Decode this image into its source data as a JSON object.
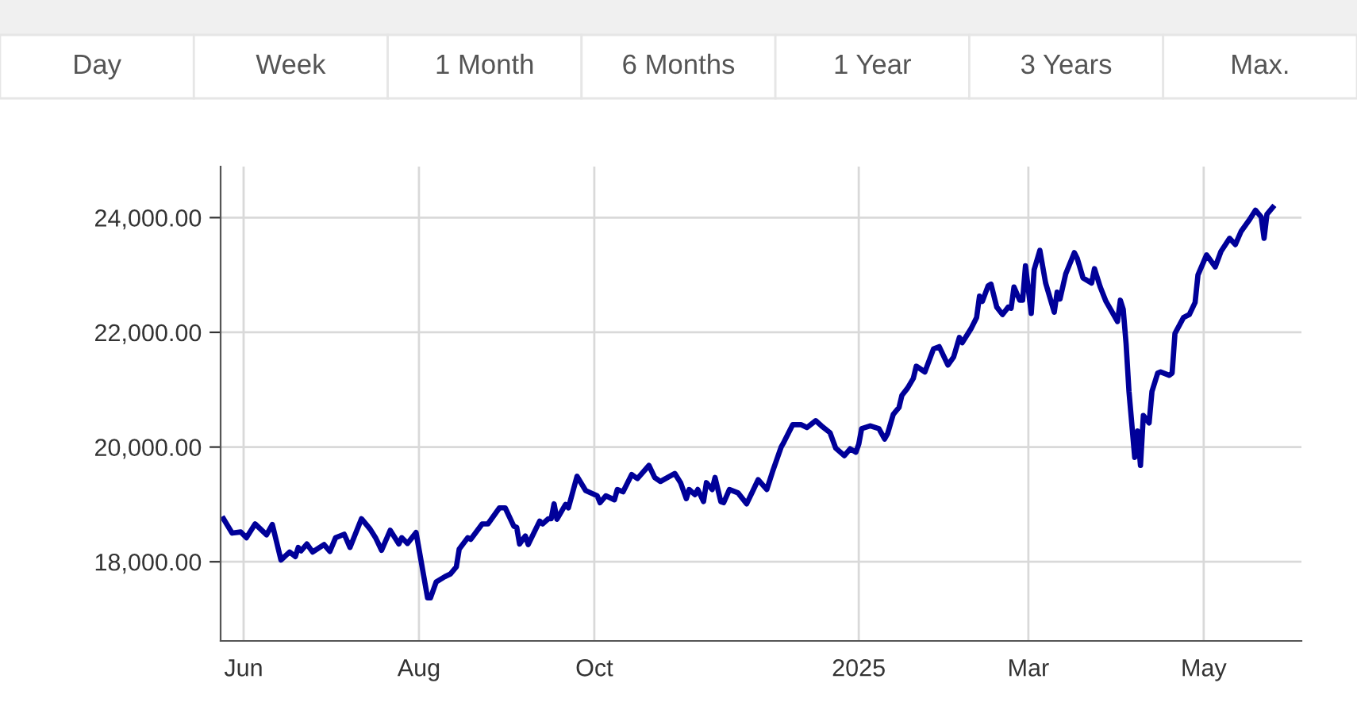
{
  "chart_data": {
    "type": "line",
    "annotations": [
      "Day",
      "Week",
      "1 Month",
      "6 Months",
      "1 Year",
      "3 Years",
      "Max."
    ],
    "xlim": [
      "2024-05-24",
      "2025-06-04"
    ],
    "xticks": [
      {
        "value": "2024-06-01",
        "label": "Jun"
      },
      {
        "value": "2024-08-01",
        "label": "Aug"
      },
      {
        "value": "2024-10-01",
        "label": "Oct"
      },
      {
        "value": "2025-01-01",
        "label": "2025"
      },
      {
        "value": "2025-03-01",
        "label": "Mar"
      },
      {
        "value": "2025-05-01",
        "label": "May"
      }
    ],
    "ylim": [
      16620,
      24890
    ],
    "yticks": [
      {
        "value": 18000,
        "label": "18,000.00"
      },
      {
        "value": 20000,
        "label": "20,000.00"
      },
      {
        "value": 22000,
        "label": "22,000.00"
      },
      {
        "value": 24000,
        "label": "24,000.00"
      }
    ],
    "grid": true,
    "marker": "none",
    "line_style": "solid",
    "series": [
      {
        "color": "#000099",
        "x": [
          "2024-05-25",
          "2024-05-28",
          "2024-05-31",
          "2024-06-02",
          "2024-06-05",
          "2024-06-09",
          "2024-06-11",
          "2024-06-14",
          "2024-06-17",
          "2024-06-19",
          "2024-06-20",
          "2024-06-21",
          "2024-06-23",
          "2024-06-25",
          "2024-06-29",
          "2024-07-01",
          "2024-07-03",
          "2024-07-06",
          "2024-07-08",
          "2024-07-12",
          "2024-07-15",
          "2024-07-17",
          "2024-07-19",
          "2024-07-22",
          "2024-07-25",
          "2024-07-26",
          "2024-07-28",
          "2024-07-31",
          "2024-08-04",
          "2024-08-05",
          "2024-08-07",
          "2024-08-10",
          "2024-08-12",
          "2024-08-14",
          "2024-08-15",
          "2024-08-18",
          "2024-08-19",
          "2024-08-23",
          "2024-08-25",
          "2024-08-29",
          "2024-08-31",
          "2024-09-03",
          "2024-09-04",
          "2024-09-05",
          "2024-09-07",
          "2024-09-08",
          "2024-09-12",
          "2024-09-13",
          "2024-09-15",
          "2024-09-16",
          "2024-09-17",
          "2024-09-18",
          "2024-09-21",
          "2024-09-22",
          "2024-09-25",
          "2024-09-28",
          "2024-10-02",
          "2024-10-03",
          "2024-10-05",
          "2024-10-08",
          "2024-10-09",
          "2024-10-11",
          "2024-10-14",
          "2024-10-16",
          "2024-10-20",
          "2024-10-22",
          "2024-10-24",
          "2024-10-29",
          "2024-10-31",
          "2024-11-02",
          "2024-11-03",
          "2024-11-05",
          "2024-11-06",
          "2024-11-08",
          "2024-11-09",
          "2024-11-11",
          "2024-11-12",
          "2024-11-14",
          "2024-11-15",
          "2024-11-17",
          "2024-11-20",
          "2024-11-23",
          "2024-11-25",
          "2024-11-27",
          "2024-11-30",
          "2024-12-02",
          "2024-12-05",
          "2024-12-06",
          "2024-12-09",
          "2024-12-12",
          "2024-12-14",
          "2024-12-17",
          "2024-12-19",
          "2024-12-22",
          "2024-12-24",
          "2024-12-27",
          "2024-12-29",
          "2024-12-31",
          "2025-01-01",
          "2025-01-02",
          "2025-01-05",
          "2025-01-08",
          "2025-01-10",
          "2025-01-11",
          "2025-01-13",
          "2025-01-15",
          "2025-01-16",
          "2025-01-18",
          "2025-01-20",
          "2025-01-21",
          "2025-01-24",
          "2025-01-27",
          "2025-01-29",
          "2025-02-01",
          "2025-02-03",
          "2025-02-05",
          "2025-02-06",
          "2025-02-09",
          "2025-02-11",
          "2025-02-12",
          "2025-02-13",
          "2025-02-15",
          "2025-02-16",
          "2025-02-18",
          "2025-02-20",
          "2025-02-22",
          "2025-02-23",
          "2025-02-24",
          "2025-02-26",
          "2025-02-27",
          "2025-02-28",
          "2025-03-02",
          "2025-03-03",
          "2025-03-05",
          "2025-03-07",
          "2025-03-10",
          "2025-03-11",
          "2025-03-12",
          "2025-03-14",
          "2025-03-17",
          "2025-03-18",
          "2025-03-20",
          "2025-03-23",
          "2025-03-24",
          "2025-03-26",
          "2025-03-28",
          "2025-04-01",
          "2025-04-02",
          "2025-04-03",
          "2025-04-04",
          "2025-04-05",
          "2025-04-07",
          "2025-04-08",
          "2025-04-09",
          "2025-04-10",
          "2025-04-12",
          "2025-04-13",
          "2025-04-15",
          "2025-04-16",
          "2025-04-19",
          "2025-04-20",
          "2025-04-21",
          "2025-04-24",
          "2025-04-26",
          "2025-04-28",
          "2025-04-29",
          "2025-05-02",
          "2025-05-05",
          "2025-05-07",
          "2025-05-10",
          "2025-05-12",
          "2025-05-14",
          "2025-05-17",
          "2025-05-19",
          "2025-05-21",
          "2025-05-22",
          "2025-05-23",
          "2025-05-25"
        ],
        "values": [
          18750,
          18500,
          18520,
          18420,
          18660,
          18470,
          18650,
          18030,
          18170,
          18090,
          18250,
          18190,
          18310,
          18170,
          18300,
          18180,
          18420,
          18480,
          18250,
          18750,
          18570,
          18410,
          18200,
          18550,
          18310,
          18420,
          18320,
          18510,
          17370,
          17370,
          17650,
          17740,
          17790,
          17910,
          18220,
          18420,
          18390,
          18660,
          18660,
          18940,
          18940,
          18620,
          18600,
          18310,
          18450,
          18300,
          18710,
          18660,
          18750,
          18750,
          19010,
          18740,
          19000,
          18940,
          19490,
          19240,
          19150,
          19030,
          19150,
          19080,
          19260,
          19220,
          19520,
          19450,
          19680,
          19470,
          19400,
          19540,
          19380,
          19100,
          19260,
          19170,
          19260,
          19050,
          19380,
          19260,
          19470,
          19050,
          19030,
          19260,
          19200,
          19010,
          19220,
          19430,
          19260,
          19570,
          20000,
          20090,
          20390,
          20390,
          20340,
          20460,
          20370,
          20250,
          19980,
          19850,
          19970,
          19910,
          20050,
          20320,
          20370,
          20320,
          20140,
          20230,
          20570,
          20690,
          20900,
          21030,
          21200,
          21410,
          21310,
          21710,
          21750,
          21430,
          21570,
          21910,
          21820,
          22060,
          22260,
          22630,
          22540,
          22810,
          22840,
          22440,
          22310,
          22440,
          22420,
          22790,
          22560,
          22560,
          23160,
          22330,
          23090,
          23430,
          22860,
          22350,
          22700,
          22580,
          23020,
          23390,
          23290,
          22950,
          22860,
          23110,
          22790,
          22540,
          22190,
          22560,
          22400,
          21800,
          20970,
          19820,
          20280,
          19680,
          20550,
          20420,
          20970,
          21290,
          21310,
          21250,
          21290,
          21980,
          22260,
          22310,
          22520,
          23000,
          23350,
          23140,
          23410,
          23640,
          23530,
          23760,
          23970,
          24130,
          24010,
          23640,
          24060,
          24180
        ]
      }
    ]
  }
}
